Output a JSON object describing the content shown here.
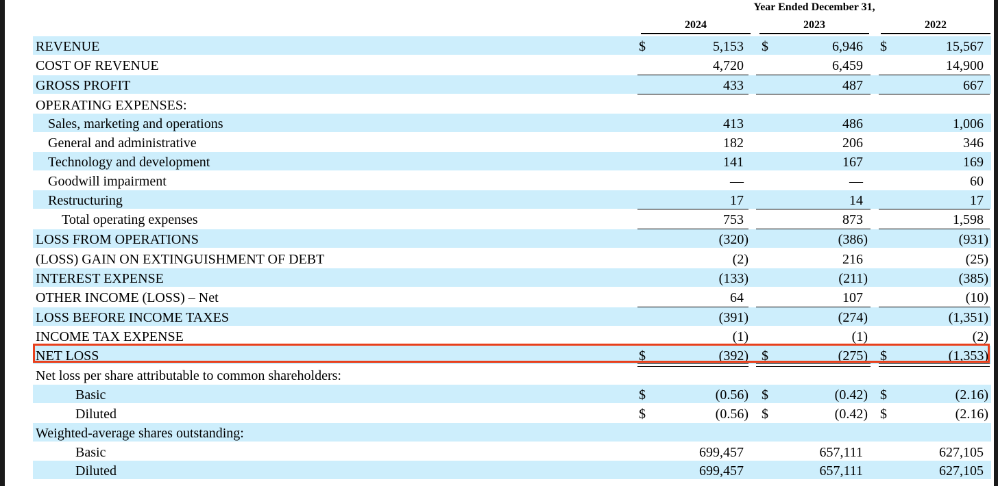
{
  "header": {
    "period_label": "Year Ended December 31,",
    "years": [
      "2024",
      "2023",
      "2022"
    ]
  },
  "rows": [
    {
      "label": "REVENUE",
      "indent": 0,
      "values": [
        "5,153",
        "6,946",
        "15,567"
      ],
      "dollar": true
    },
    {
      "label": "COST OF REVENUE",
      "indent": 0,
      "values": [
        "4,720",
        "6,459",
        "14,900"
      ]
    },
    {
      "label": "GROSS PROFIT",
      "indent": 0,
      "values": [
        "433",
        "487",
        "667"
      ]
    },
    {
      "label": "OPERATING EXPENSES:",
      "indent": 0,
      "values": [
        "",
        "",
        ""
      ]
    },
    {
      "label": "Sales, marketing and operations",
      "indent": 1,
      "values": [
        "413",
        "486",
        "1,006"
      ]
    },
    {
      "label": "General and administrative",
      "indent": 1,
      "values": [
        "182",
        "206",
        "346"
      ]
    },
    {
      "label": "Technology and development",
      "indent": 1,
      "values": [
        "141",
        "167",
        "169"
      ]
    },
    {
      "label": "Goodwill impairment",
      "indent": 1,
      "values": [
        "—",
        "—",
        "60"
      ]
    },
    {
      "label": "Restructuring",
      "indent": 1,
      "values": [
        "17",
        "14",
        "17"
      ]
    },
    {
      "label": "Total operating expenses",
      "indent": 2,
      "values": [
        "753",
        "873",
        "1,598"
      ]
    },
    {
      "label": "LOSS FROM OPERATIONS",
      "indent": 0,
      "values": [
        "(320)",
        "(386)",
        "(931)"
      ]
    },
    {
      "label": "(LOSS) GAIN ON EXTINGUISHMENT OF DEBT",
      "indent": 0,
      "values": [
        "(2)",
        "216",
        "(25)"
      ]
    },
    {
      "label": "INTEREST EXPENSE",
      "indent": 0,
      "values": [
        "(133)",
        "(211)",
        "(385)"
      ]
    },
    {
      "label": "OTHER INCOME (LOSS) – Net",
      "indent": 0,
      "values": [
        "64",
        "107",
        "(10)"
      ]
    },
    {
      "label": "LOSS BEFORE INCOME TAXES",
      "indent": 0,
      "values": [
        "(391)",
        "(274)",
        "(1,351)"
      ]
    },
    {
      "label": "INCOME TAX EXPENSE",
      "indent": 0,
      "values": [
        "(1)",
        "(1)",
        "(2)"
      ]
    },
    {
      "label": "NET LOSS",
      "indent": 0,
      "values": [
        "(392)",
        "(275)",
        "(1,353)"
      ],
      "dollar": true
    },
    {
      "label": "Net loss per share attributable to common shareholders:",
      "indent": 0,
      "values": [
        "",
        "",
        ""
      ]
    },
    {
      "label": "Basic",
      "indent": 3,
      "values": [
        "(0.56)",
        "(0.42)",
        "(2.16)"
      ],
      "dollar": true
    },
    {
      "label": "Diluted",
      "indent": 3,
      "values": [
        "(0.56)",
        "(0.42)",
        "(2.16)"
      ],
      "dollar": true
    },
    {
      "label": "Weighted-average shares outstanding:",
      "indent": 0,
      "values": [
        "",
        "",
        ""
      ]
    },
    {
      "label": "Basic",
      "indent": 3,
      "values": [
        "699,457",
        "657,111",
        "627,105"
      ]
    },
    {
      "label": "Diluted",
      "indent": 3,
      "values": [
        "699,457",
        "657,111",
        "627,105"
      ]
    }
  ],
  "currency_symbol": "$",
  "highlight": {
    "row_label": "NET LOSS",
    "color": "#e8401c"
  },
  "colors": {
    "row_shade": "#cdeefc"
  }
}
